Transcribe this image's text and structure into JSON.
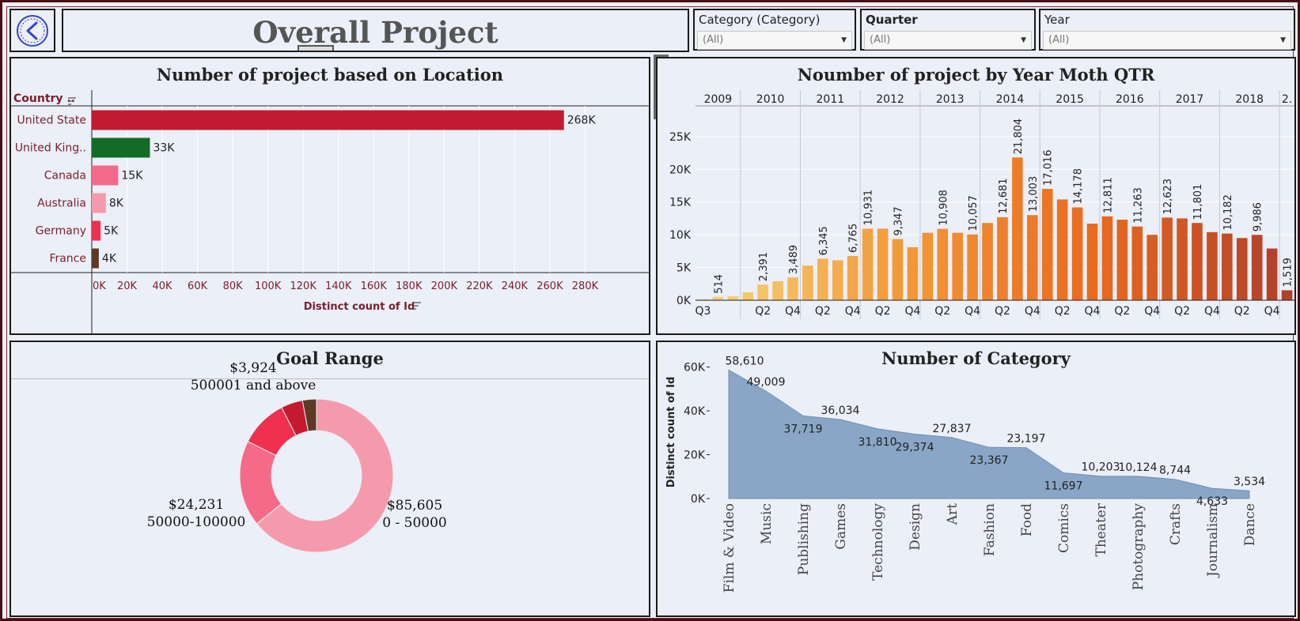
{
  "header": {
    "title": "Overall Project",
    "back_icon": "back-arrow-icon"
  },
  "filters": [
    {
      "label": "Category (Category)",
      "value": "(All)"
    },
    {
      "label": "Quarter",
      "value": "(All)"
    },
    {
      "label": "Year",
      "value": "(All)"
    }
  ],
  "colors": {
    "accent_dark": "#4a0e12",
    "panel_bg": "#ebeff7",
    "area_fill": "#8aa6c6"
  },
  "chart_data": [
    {
      "id": "location",
      "type": "bar",
      "orientation": "horizontal",
      "title": "Number of project based on Location",
      "row_header": "Country ..",
      "xlabel": "Distinct count of Id",
      "categories": [
        "United State",
        "United King..",
        "Canada",
        "Australia",
        "Germany",
        "France"
      ],
      "values": [
        268000,
        33000,
        15000,
        8000,
        5000,
        4000
      ],
      "labels": [
        "268K",
        "33K",
        "15K",
        "8K",
        "5K",
        "4K"
      ],
      "colors": [
        "#c41a30",
        "#136b26",
        "#f56a8a",
        "#f59aac",
        "#f0304f",
        "#5c3a26"
      ],
      "xlim": [
        0,
        300000
      ],
      "xticks": [
        0,
        20000,
        40000,
        60000,
        80000,
        100000,
        120000,
        140000,
        160000,
        180000,
        200000,
        220000,
        240000,
        260000,
        280000
      ],
      "xtick_labels": [
        "0K",
        "20K",
        "40K",
        "60K",
        "80K",
        "100K",
        "120K",
        "140K",
        "160K",
        "180K",
        "200K",
        "220K",
        "240K",
        "260K",
        "280K"
      ]
    },
    {
      "id": "timeline",
      "type": "bar",
      "title": "Noumber of project by Year Moth QTR",
      "years": [
        "2009",
        "2010",
        "2011",
        "2012",
        "2013",
        "2014",
        "2015",
        "2016",
        "2017",
        "2018",
        "2."
      ],
      "year_bar_counts": [
        3,
        4,
        4,
        4,
        4,
        4,
        4,
        4,
        4,
        4,
        1
      ],
      "values": [
        150,
        514,
        600,
        1200,
        2391,
        2900,
        3489,
        5300,
        6345,
        6100,
        6765,
        10931,
        10931,
        9347,
        8100,
        10300,
        10908,
        10300,
        10057,
        11800,
        12681,
        21804,
        13003,
        17016,
        15400,
        14178,
        11700,
        12811,
        12300,
        11263,
        10000,
        12623,
        12500,
        11801,
        10400,
        10182,
        9500,
        9986,
        7900,
        1519
      ],
      "labels": [
        "",
        "514",
        "",
        "",
        "2,391",
        "",
        "3,489",
        "",
        "6,345",
        "",
        "6,765",
        "10,931",
        "",
        "9,347",
        "",
        "",
        "10,908",
        "",
        "10,057",
        "",
        "12,681",
        "21,804",
        "13,003",
        "17,016",
        "",
        "14,178",
        "",
        "12,811",
        "",
        "11,263",
        "",
        "12,623",
        "",
        "11,801",
        "",
        "10,182",
        "",
        "9,986",
        "",
        "1,519"
      ],
      "quarter_labels": [
        "Q3",
        "Q2",
        "Q4",
        "Q2",
        "Q4",
        "Q2",
        "Q4",
        "Q2",
        "Q4",
        "Q2",
        "Q4",
        "Q2",
        "Q4",
        "Q2",
        "Q4",
        "Q2",
        "Q4",
        "Q2",
        "Q4"
      ],
      "ylim": [
        0,
        28000
      ],
      "yticks": [
        0,
        5000,
        10000,
        15000,
        20000,
        25000
      ],
      "ytick_labels": [
        "0K",
        "5K",
        "10K",
        "15K",
        "20K",
        "25K"
      ],
      "color_scale": [
        "#f7d47a",
        "#f39a38",
        "#ea6a1e",
        "#b0402a"
      ]
    },
    {
      "id": "goal",
      "type": "pie",
      "title": "Goal Range",
      "slices": [
        {
          "label": "0 - 50000",
          "value": 85605,
          "value_label": "$85,605",
          "color": "#f59aac"
        },
        {
          "label": "50000-100000",
          "value": 24231,
          "value_label": "$24,231",
          "color": "#f56a88"
        },
        {
          "label": "",
          "value": 13500,
          "value_label": "",
          "color": "#f0304f"
        },
        {
          "label": "",
          "value": 6100,
          "value_label": "",
          "color": "#c41a30"
        },
        {
          "label": "500001 and above",
          "value": 3924,
          "value_label": "$3,924",
          "color": "#5c3a26"
        }
      ]
    },
    {
      "id": "category",
      "type": "area",
      "title": "Number of Category",
      "ylabel": "Distinct count of Id",
      "categories": [
        "Film & Video",
        "Music",
        "Publishing",
        "Games",
        "Technology",
        "Design",
        "Art",
        "Fashion",
        "Food",
        "Comics",
        "Theater",
        "Photography",
        "Crafts",
        "Journalism",
        "Dance"
      ],
      "values": [
        58610,
        49009,
        37719,
        36034,
        31810,
        29374,
        27837,
        23367,
        23197,
        11697,
        10203,
        10124,
        8744,
        4633,
        3534
      ],
      "labels": [
        "58,610",
        "49,009",
        "37,719",
        "36,034",
        "31,810",
        "29,374",
        "27,837",
        "23,367",
        "23,197",
        "11,697",
        "10,203",
        "10,124",
        "8,744",
        "4,633",
        "3,534"
      ],
      "label_side": [
        "above",
        "above",
        "below",
        "above",
        "below",
        "below",
        "above",
        "below",
        "above",
        "below",
        "above",
        "above",
        "above",
        "below",
        "above"
      ],
      "ylim": [
        0,
        62000
      ],
      "yticks": [
        0,
        20000,
        40000,
        60000
      ],
      "ytick_labels": [
        "0K",
        "20K",
        "40K",
        "60K"
      ],
      "color": "#8aa6c6"
    }
  ]
}
